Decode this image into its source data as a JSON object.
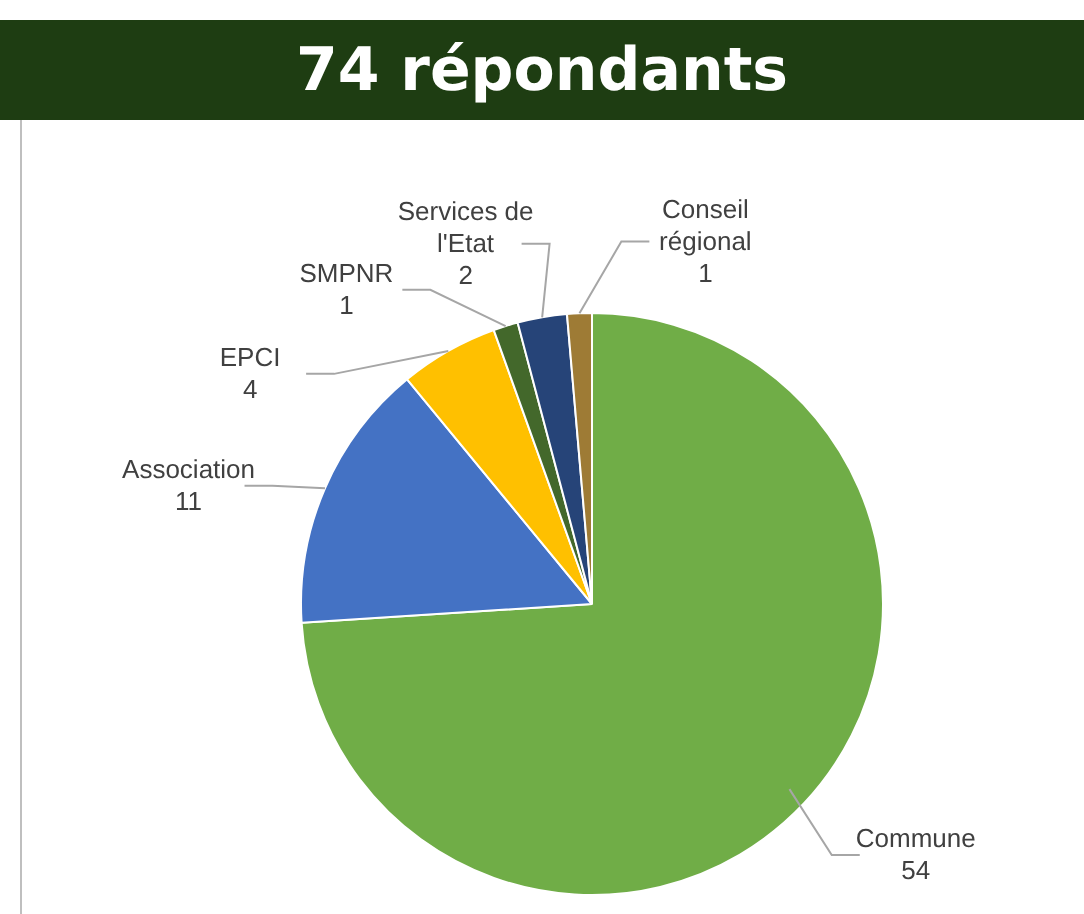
{
  "chart_data": {
    "type": "pie",
    "title": "74 répondants",
    "categories": [
      "Commune",
      "Association",
      "EPCI",
      "SMPNR",
      "Services de l'Etat",
      "Conseil régional"
    ],
    "values": [
      54,
      11,
      4,
      1,
      2,
      1
    ],
    "colors": [
      "#70ad47",
      "#4472c4",
      "#ffc000",
      "#43682b",
      "#264478",
      "#9e7b35"
    ],
    "data_labels": true,
    "legend": false
  }
}
